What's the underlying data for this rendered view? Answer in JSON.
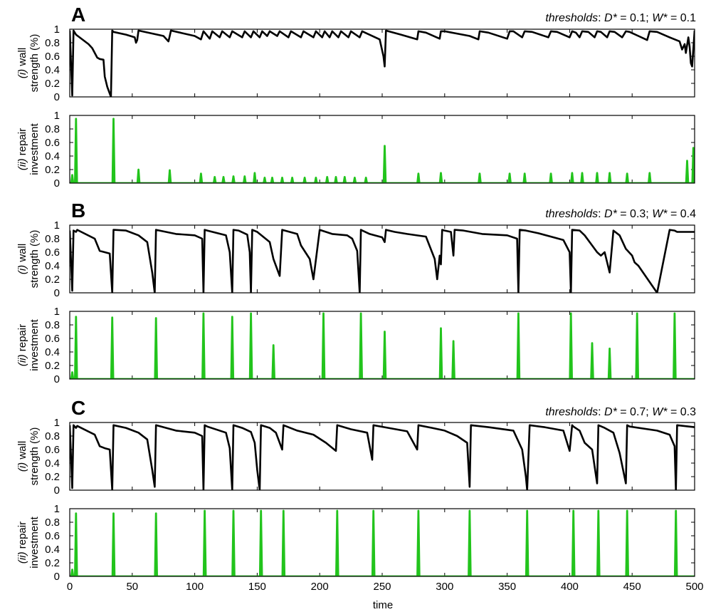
{
  "figure": {
    "xlabel": "time"
  },
  "colors": {
    "wall": "#000000",
    "repair": "#22c41c",
    "axis": "#000000"
  },
  "chart_data": [
    {
      "panel": "A",
      "type": "line",
      "thresholds": {
        "prefix": "thresholds",
        "d_label": "D*",
        "d_value": "0.1",
        "w_label": "W*",
        "w_value": "0.1"
      },
      "xlim": [
        0,
        500
      ],
      "xticks": [
        "0",
        "50",
        "100",
        "150",
        "200",
        "250",
        "300",
        "350",
        "400",
        "450",
        "500"
      ],
      "subplots": [
        {
          "label_italic": "(i)",
          "label_rest": " wall",
          "label_line2": "strength (%)",
          "series": "wall",
          "ylim": [
            0,
            1
          ],
          "yticks": [
            "0",
            "0.2",
            "0.4",
            "0.6",
            "0.8",
            "1"
          ],
          "x": [
            0,
            2,
            3,
            5,
            15,
            18,
            22,
            24,
            27,
            28,
            30,
            33,
            34,
            35,
            45,
            52,
            53,
            54,
            55,
            75,
            79,
            80,
            81,
            100,
            105,
            107,
            112,
            114,
            120,
            122,
            128,
            130,
            138,
            140,
            145,
            147,
            152,
            154,
            158,
            160,
            166,
            168,
            175,
            177,
            185,
            187,
            195,
            197,
            202,
            204,
            208,
            210,
            215,
            217,
            223,
            225,
            232,
            234,
            248,
            251,
            252,
            253,
            255,
            265,
            278,
            279,
            285,
            296,
            297,
            300,
            320,
            327,
            328,
            335,
            350,
            352,
            355,
            362,
            364,
            370,
            383,
            385,
            390,
            400,
            402,
            405,
            408,
            410,
            415,
            420,
            422,
            425,
            430,
            432,
            436,
            442,
            445,
            448,
            455,
            462,
            464,
            470,
            480,
            488,
            490,
            492,
            493,
            495,
            496,
            497,
            498,
            500
          ],
          "y": [
            0.98,
            0.02,
            0.98,
            0.92,
            0.78,
            0.72,
            0.58,
            0.56,
            0.55,
            0.3,
            0.15,
            0.0,
            0.98,
            0.96,
            0.92,
            0.88,
            0.8,
            0.84,
            0.98,
            0.9,
            0.82,
            0.9,
            0.98,
            0.9,
            0.85,
            0.97,
            0.86,
            0.97,
            0.88,
            0.97,
            0.88,
            0.97,
            0.88,
            0.97,
            0.88,
            0.97,
            0.88,
            0.97,
            0.9,
            0.97,
            0.9,
            0.97,
            0.88,
            0.97,
            0.88,
            0.97,
            0.88,
            0.97,
            0.88,
            0.97,
            0.88,
            0.97,
            0.88,
            0.97,
            0.88,
            0.97,
            0.88,
            0.97,
            0.85,
            0.6,
            0.45,
            0.98,
            0.97,
            0.92,
            0.85,
            0.97,
            0.95,
            0.86,
            0.97,
            0.97,
            0.9,
            0.85,
            0.97,
            0.95,
            0.86,
            0.97,
            0.97,
            0.88,
            0.97,
            0.96,
            0.88,
            0.97,
            0.96,
            0.88,
            0.97,
            0.95,
            0.88,
            0.97,
            0.96,
            0.88,
            0.97,
            0.96,
            0.88,
            0.97,
            0.96,
            0.88,
            0.97,
            0.96,
            0.9,
            0.84,
            0.97,
            0.96,
            0.88,
            0.82,
            0.7,
            0.78,
            0.65,
            0.88,
            0.74,
            0.5,
            0.45,
            0.98
          ]
        },
        {
          "label_italic": "(ii)",
          "label_rest": " repair",
          "label_line2": "investment",
          "series": "repair",
          "ylim": [
            0,
            1
          ],
          "yticks": [
            "0",
            "0.2",
            "0.4",
            "0.6",
            "0.8",
            "1"
          ],
          "peaks": [
            [
              2,
              0.12
            ],
            [
              5,
              0.95
            ],
            [
              35,
              0.95
            ],
            [
              55,
              0.2
            ],
            [
              80,
              0.19
            ],
            [
              105,
              0.14
            ],
            [
              116,
              0.09
            ],
            [
              123,
              0.09
            ],
            [
              131,
              0.1
            ],
            [
              140,
              0.1
            ],
            [
              148,
              0.15
            ],
            [
              156,
              0.08
            ],
            [
              162,
              0.08
            ],
            [
              170,
              0.08
            ],
            [
              178,
              0.08
            ],
            [
              188,
              0.08
            ],
            [
              197,
              0.08
            ],
            [
              206,
              0.09
            ],
            [
              213,
              0.09
            ],
            [
              220,
              0.09
            ],
            [
              228,
              0.08
            ],
            [
              237,
              0.08
            ],
            [
              252,
              0.55
            ],
            [
              279,
              0.14
            ],
            [
              297,
              0.15
            ],
            [
              328,
              0.14
            ],
            [
              352,
              0.14
            ],
            [
              364,
              0.14
            ],
            [
              385,
              0.14
            ],
            [
              402,
              0.15
            ],
            [
              410,
              0.15
            ],
            [
              422,
              0.15
            ],
            [
              432,
              0.15
            ],
            [
              446,
              0.14
            ],
            [
              464,
              0.15
            ],
            [
              494,
              0.33
            ],
            [
              499,
              0.52
            ]
          ]
        }
      ]
    },
    {
      "panel": "B",
      "type": "line",
      "thresholds": {
        "prefix": "thresholds",
        "d_label": "D*",
        "d_value": "0.3",
        "w_label": "W*",
        "w_value": "0.4"
      },
      "xlim": [
        0,
        500
      ],
      "xticks": [
        "0",
        "50",
        "100",
        "150",
        "200",
        "250",
        "300",
        "350",
        "400",
        "450",
        "500"
      ],
      "subplots": [
        {
          "label_italic": "(i)",
          "label_rest": " wall",
          "label_line2": "strength (%)",
          "series": "wall",
          "ylim": [
            0,
            1
          ],
          "yticks": [
            "0",
            "0.2",
            "0.4",
            "0.6",
            "0.8",
            "1"
          ],
          "x": [
            0,
            2,
            3,
            5,
            6,
            20,
            24,
            28,
            32,
            34,
            35,
            45,
            55,
            62,
            66,
            68,
            69,
            85,
            100,
            106,
            107,
            108,
            110,
            125,
            128,
            130,
            131,
            135,
            142,
            144,
            145,
            146,
            150,
            160,
            163,
            168,
            170,
            182,
            185,
            192,
            195,
            200,
            210,
            222,
            226,
            230,
            232,
            233,
            240,
            250,
            252,
            253,
            260,
            270,
            285,
            292,
            294,
            296,
            297,
            298,
            300,
            305,
            307,
            308,
            315,
            330,
            350,
            358,
            359,
            360,
            365,
            375,
            385,
            395,
            400,
            401,
            402,
            408,
            412,
            418,
            422,
            425,
            428,
            432,
            435,
            440,
            445,
            450,
            452,
            455,
            470,
            480,
            484,
            485,
            486,
            500
          ],
          "y": [
            0.92,
            0.03,
            0.92,
            0.9,
            0.93,
            0.8,
            0.62,
            0.6,
            0.58,
            0.0,
            0.93,
            0.92,
            0.85,
            0.75,
            0.3,
            0.0,
            0.93,
            0.87,
            0.85,
            0.8,
            0.0,
            0.93,
            0.92,
            0.85,
            0.6,
            0.0,
            0.93,
            0.92,
            0.86,
            0.6,
            0.0,
            0.93,
            0.9,
            0.75,
            0.5,
            0.25,
            0.93,
            0.87,
            0.7,
            0.5,
            0.2,
            0.93,
            0.87,
            0.85,
            0.8,
            0.62,
            0.0,
            0.93,
            0.87,
            0.82,
            0.75,
            0.93,
            0.9,
            0.87,
            0.83,
            0.5,
            0.2,
            0.55,
            0.42,
            0.93,
            0.92,
            0.9,
            0.55,
            0.93,
            0.92,
            0.87,
            0.85,
            0.8,
            0.0,
            0.93,
            0.92,
            0.88,
            0.83,
            0.78,
            0.6,
            0.0,
            0.93,
            0.92,
            0.85,
            0.7,
            0.6,
            0.55,
            0.6,
            0.3,
            0.92,
            0.85,
            0.65,
            0.55,
            0.45,
            0.4,
            0.0,
            0.93,
            0.92,
            0.91,
            0.9,
            0.9
          ]
        },
        {
          "label_italic": "(ii)",
          "label_rest": " repair",
          "label_line2": "investment",
          "series": "repair",
          "ylim": [
            0,
            1
          ],
          "yticks": [
            "0",
            "0.2",
            "0.4",
            "0.6",
            "0.8",
            "1"
          ],
          "peaks": [
            [
              2,
              0.1
            ],
            [
              5,
              0.92
            ],
            [
              34,
              0.91
            ],
            [
              69,
              0.9
            ],
            [
              107,
              0.97
            ],
            [
              130,
              0.92
            ],
            [
              145,
              0.97
            ],
            [
              163,
              0.5
            ],
            [
              203,
              0.97
            ],
            [
              233,
              0.97
            ],
            [
              252,
              0.7
            ],
            [
              297,
              0.75
            ],
            [
              307,
              0.56
            ],
            [
              359,
              0.97
            ],
            [
              401,
              0.97
            ],
            [
              418,
              0.53
            ],
            [
              432,
              0.45
            ],
            [
              454,
              0.97
            ],
            [
              484,
              0.97
            ]
          ]
        }
      ]
    },
    {
      "panel": "C",
      "type": "line",
      "thresholds": {
        "prefix": "thresholds",
        "d_label": "D*",
        "d_value": "0.7",
        "w_label": "W*",
        "w_value": "0.3"
      },
      "xlim": [
        0,
        500
      ],
      "xticks": [
        "0",
        "50",
        "100",
        "150",
        "200",
        "250",
        "300",
        "350",
        "400",
        "450",
        "500"
      ],
      "subplots": [
        {
          "label_italic": "(i)",
          "label_rest": " wall",
          "label_line2": "strength (%)",
          "series": "wall",
          "ylim": [
            0,
            1
          ],
          "yticks": [
            "0",
            "0.2",
            "0.4",
            "0.6",
            "0.8",
            "1"
          ],
          "x": [
            0,
            2,
            3,
            5,
            6,
            20,
            24,
            28,
            32,
            34,
            35,
            45,
            55,
            62,
            66,
            68,
            69,
            85,
            100,
            106,
            107,
            108,
            110,
            125,
            128,
            130,
            131,
            138,
            145,
            148,
            150,
            152,
            153,
            160,
            165,
            170,
            171,
            182,
            195,
            205,
            213,
            214,
            225,
            238,
            242,
            243,
            255,
            270,
            278,
            279,
            290,
            300,
            310,
            318,
            320,
            321,
            335,
            355,
            362,
            365,
            366,
            368,
            380,
            395,
            400,
            402,
            403,
            408,
            412,
            418,
            422,
            423,
            428,
            435,
            440,
            445,
            446,
            448,
            470,
            480,
            484,
            485,
            486,
            500
          ],
          "y": [
            0.96,
            0.03,
            0.96,
            0.92,
            0.95,
            0.82,
            0.65,
            0.62,
            0.6,
            0.0,
            0.96,
            0.92,
            0.85,
            0.75,
            0.3,
            0.05,
            0.96,
            0.88,
            0.85,
            0.8,
            0.0,
            0.96,
            0.94,
            0.85,
            0.62,
            0.0,
            0.96,
            0.92,
            0.86,
            0.7,
            0.3,
            0.0,
            0.96,
            0.92,
            0.85,
            0.6,
            0.96,
            0.88,
            0.82,
            0.7,
            0.58,
            0.96,
            0.9,
            0.85,
            0.45,
            0.96,
            0.92,
            0.87,
            0.6,
            0.96,
            0.92,
            0.88,
            0.8,
            0.7,
            0.05,
            0.96,
            0.93,
            0.88,
            0.6,
            0.2,
            0.0,
            0.96,
            0.93,
            0.88,
            0.58,
            0.96,
            0.94,
            0.88,
            0.7,
            0.6,
            0.1,
            0.96,
            0.92,
            0.85,
            0.55,
            0.1,
            0.96,
            0.94,
            0.88,
            0.82,
            0.65,
            0.0,
            0.96,
            0.93
          ]
        },
        {
          "label_italic": "(ii)",
          "label_rest": " repair",
          "label_line2": "investment",
          "series": "repair",
          "ylim": [
            0,
            1
          ],
          "yticks": [
            "0",
            "0.2",
            "0.4",
            "0.6",
            "0.8",
            "1"
          ],
          "peaks": [
            [
              2,
              0.1
            ],
            [
              5,
              0.93
            ],
            [
              35,
              0.93
            ],
            [
              69,
              0.93
            ],
            [
              108,
              0.97
            ],
            [
              131,
              0.97
            ],
            [
              153,
              0.97
            ],
            [
              171,
              0.97
            ],
            [
              214,
              0.97
            ],
            [
              243,
              0.97
            ],
            [
              279,
              0.97
            ],
            [
              320,
              0.97
            ],
            [
              366,
              0.97
            ],
            [
              403,
              0.97
            ],
            [
              423,
              0.97
            ],
            [
              446,
              0.97
            ],
            [
              485,
              0.97
            ]
          ]
        }
      ]
    }
  ]
}
